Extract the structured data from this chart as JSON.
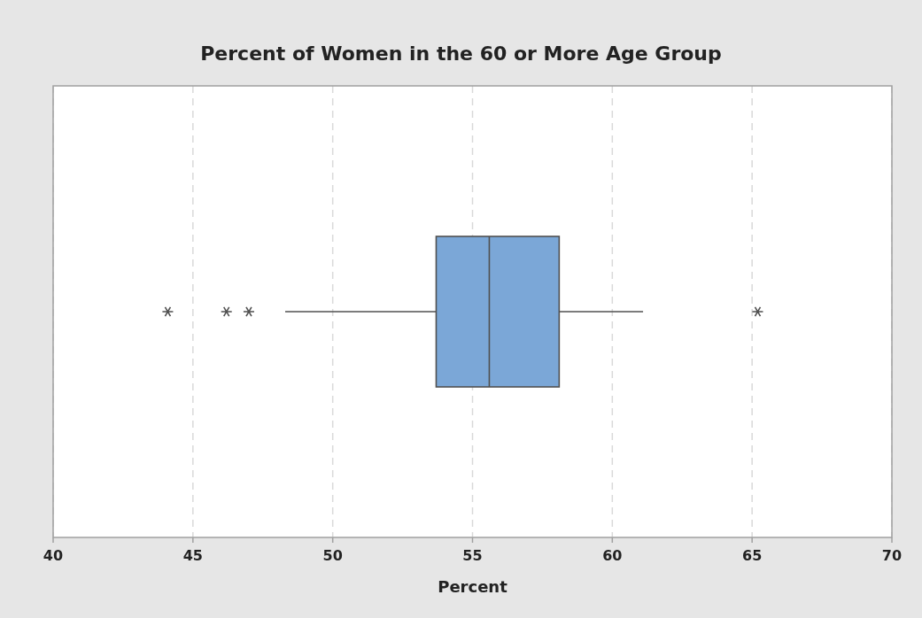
{
  "chart_data": {
    "type": "box",
    "title": "Percent of Women in the 60 or More Age Group",
    "xlabel": "Percent",
    "orientation": "horizontal",
    "categories": [
      null
    ],
    "boxes": [
      {
        "low": 48.3,
        "q1": 53.7,
        "median": 55.6,
        "q3": 58.1,
        "high": 61.1,
        "outliers": [
          44.1,
          46.2,
          47.0,
          65.2
        ]
      }
    ],
    "color": "#7ba7d7",
    "xlim": [
      40,
      70
    ],
    "xticks": [
      40,
      45,
      50,
      55,
      60,
      65,
      70
    ],
    "grid": "x",
    "marker": "star"
  }
}
